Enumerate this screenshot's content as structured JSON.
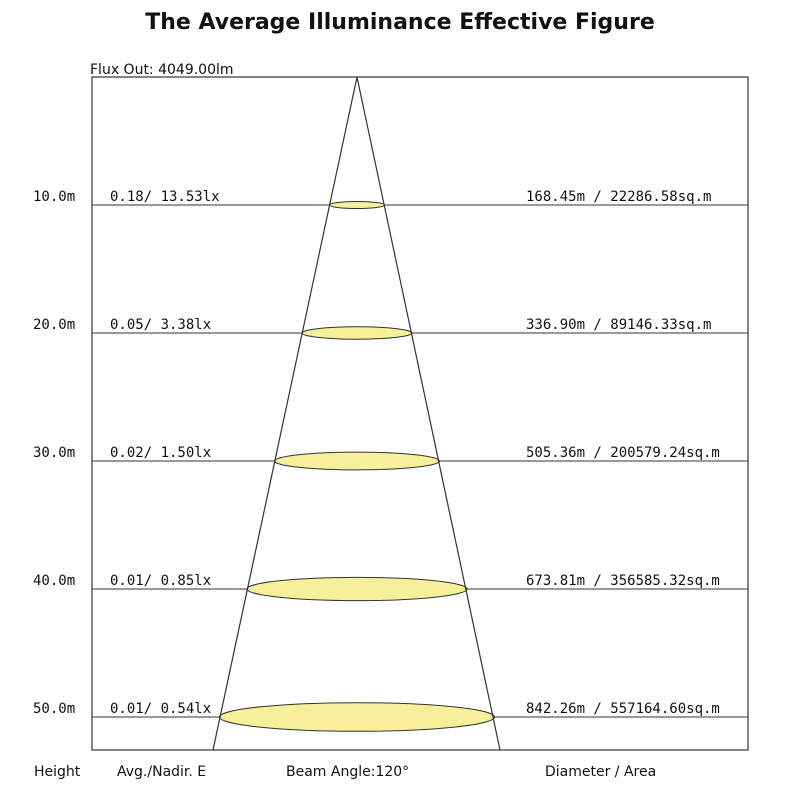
{
  "title": "The Average Illuminance Effective Figure",
  "flux_out": "Flux Out: 4049.00lm",
  "beam_angle_deg": 120,
  "colors": {
    "spot_fill": "#f7f09a",
    "line": "#333333"
  },
  "levels": [
    {
      "height": "10.0m",
      "illuminance": "0.18/ 13.53lx",
      "diameter_area": "168.45m / 22286.58sq.m"
    },
    {
      "height": "20.0m",
      "illuminance": "0.05/ 3.38lx",
      "diameter_area": "336.90m / 89146.33sq.m"
    },
    {
      "height": "30.0m",
      "illuminance": "0.02/ 1.50lx",
      "diameter_area": "505.36m / 200579.24sq.m"
    },
    {
      "height": "40.0m",
      "illuminance": "0.01/ 0.85lx",
      "diameter_area": "673.81m / 356585.32sq.m"
    },
    {
      "height": "50.0m",
      "illuminance": "0.01/ 0.54lx",
      "diameter_area": "842.26m / 557164.60sq.m"
    }
  ],
  "footer": {
    "height": "Height",
    "illuminance": "Avg./Nadir. E",
    "beam_angle": "Beam Angle:120°",
    "diameter_area": "Diameter / Area"
  }
}
